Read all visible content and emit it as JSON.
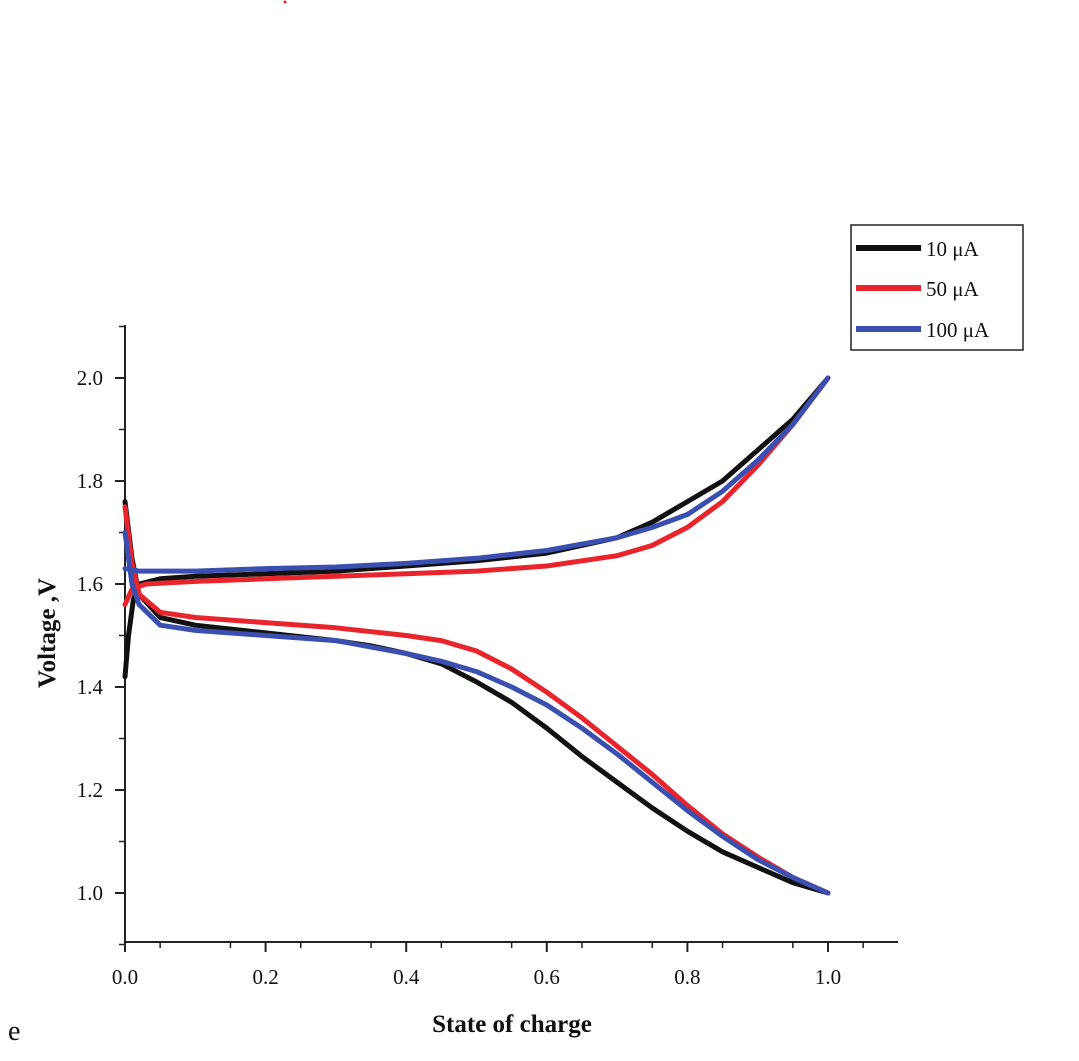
{
  "colors": {
    "s10": "#111111",
    "s50": "#e8242c",
    "s100": "#3b4fb0"
  },
  "panel_label": "e",
  "chart_data": {
    "type": "line",
    "title": "",
    "xlabel": "State of charge",
    "ylabel": "Voltage ,V",
    "xlim": [
      0.0,
      1.1
    ],
    "ylim": [
      0.9,
      2.1
    ],
    "xticks": [
      "0.0",
      "0.2",
      "0.4",
      "0.6",
      "0.8",
      "1.0"
    ],
    "xtick_values": [
      0.0,
      0.2,
      0.4,
      0.6,
      0.8,
      1.0
    ],
    "yticks": [
      "1.0",
      "1.2",
      "1.4",
      "1.6",
      "1.8",
      "2.0"
    ],
    "ytick_values": [
      1.0,
      1.2,
      1.4,
      1.6,
      1.8,
      2.0
    ],
    "legend_position": "top-right",
    "series": [
      {
        "name": "10 μA",
        "color_key": "s10",
        "charge": [
          [
            0.0,
            1.42
          ],
          [
            0.005,
            1.5
          ],
          [
            0.012,
            1.57
          ],
          [
            0.02,
            1.6
          ],
          [
            0.05,
            1.61
          ],
          [
            0.1,
            1.615
          ],
          [
            0.2,
            1.62
          ],
          [
            0.3,
            1.625
          ],
          [
            0.4,
            1.635
          ],
          [
            0.5,
            1.645
          ],
          [
            0.6,
            1.66
          ],
          [
            0.7,
            1.69
          ],
          [
            0.75,
            1.72
          ],
          [
            0.8,
            1.76
          ],
          [
            0.85,
            1.8
          ],
          [
            0.9,
            1.86
          ],
          [
            0.95,
            1.92
          ],
          [
            1.0,
            2.0
          ]
        ],
        "discharge": [
          [
            0.0,
            1.76
          ],
          [
            0.01,
            1.65
          ],
          [
            0.02,
            1.58
          ],
          [
            0.05,
            1.535
          ],
          [
            0.1,
            1.52
          ],
          [
            0.2,
            1.505
          ],
          [
            0.3,
            1.49
          ],
          [
            0.35,
            1.48
          ],
          [
            0.4,
            1.465
          ],
          [
            0.45,
            1.445
          ],
          [
            0.5,
            1.41
          ],
          [
            0.55,
            1.37
          ],
          [
            0.6,
            1.32
          ],
          [
            0.65,
            1.265
          ],
          [
            0.7,
            1.215
          ],
          [
            0.75,
            1.165
          ],
          [
            0.8,
            1.12
          ],
          [
            0.85,
            1.08
          ],
          [
            0.9,
            1.05
          ],
          [
            0.95,
            1.02
          ],
          [
            1.0,
            1.0
          ]
        ]
      },
      {
        "name": "50 μA",
        "color_key": "s50",
        "charge": [
          [
            0.0,
            1.56
          ],
          [
            0.01,
            1.59
          ],
          [
            0.03,
            1.6
          ],
          [
            0.1,
            1.605
          ],
          [
            0.2,
            1.61
          ],
          [
            0.3,
            1.615
          ],
          [
            0.4,
            1.62
          ],
          [
            0.5,
            1.625
          ],
          [
            0.6,
            1.635
          ],
          [
            0.7,
            1.655
          ],
          [
            0.75,
            1.675
          ],
          [
            0.8,
            1.71
          ],
          [
            0.85,
            1.76
          ],
          [
            0.9,
            1.83
          ],
          [
            0.95,
            1.91
          ],
          [
            1.0,
            2.0
          ]
        ],
        "discharge": [
          [
            0.0,
            1.75
          ],
          [
            0.01,
            1.64
          ],
          [
            0.02,
            1.58
          ],
          [
            0.05,
            1.545
          ],
          [
            0.1,
            1.535
          ],
          [
            0.2,
            1.525
          ],
          [
            0.3,
            1.515
          ],
          [
            0.4,
            1.5
          ],
          [
            0.45,
            1.49
          ],
          [
            0.5,
            1.47
          ],
          [
            0.55,
            1.435
          ],
          [
            0.6,
            1.39
          ],
          [
            0.65,
            1.34
          ],
          [
            0.7,
            1.285
          ],
          [
            0.75,
            1.23
          ],
          [
            0.8,
            1.17
          ],
          [
            0.85,
            1.115
          ],
          [
            0.9,
            1.07
          ],
          [
            0.95,
            1.03
          ],
          [
            1.0,
            1.0
          ]
        ]
      },
      {
        "name": "100 μA",
        "color_key": "s100",
        "charge": [
          [
            0.0,
            1.63
          ],
          [
            0.02,
            1.625
          ],
          [
            0.1,
            1.625
          ],
          [
            0.2,
            1.63
          ],
          [
            0.3,
            1.633
          ],
          [
            0.4,
            1.64
          ],
          [
            0.5,
            1.65
          ],
          [
            0.6,
            1.665
          ],
          [
            0.7,
            1.69
          ],
          [
            0.75,
            1.71
          ],
          [
            0.8,
            1.735
          ],
          [
            0.85,
            1.78
          ],
          [
            0.9,
            1.84
          ],
          [
            0.95,
            1.91
          ],
          [
            1.0,
            2.0
          ]
        ],
        "discharge": [
          [
            0.0,
            1.7
          ],
          [
            0.01,
            1.6
          ],
          [
            0.02,
            1.56
          ],
          [
            0.05,
            1.52
          ],
          [
            0.1,
            1.51
          ],
          [
            0.2,
            1.5
          ],
          [
            0.3,
            1.49
          ],
          [
            0.4,
            1.465
          ],
          [
            0.45,
            1.45
          ],
          [
            0.5,
            1.43
          ],
          [
            0.55,
            1.4
          ],
          [
            0.6,
            1.365
          ],
          [
            0.65,
            1.32
          ],
          [
            0.7,
            1.27
          ],
          [
            0.75,
            1.215
          ],
          [
            0.8,
            1.16
          ],
          [
            0.85,
            1.11
          ],
          [
            0.9,
            1.065
          ],
          [
            0.95,
            1.03
          ],
          [
            1.0,
            1.0
          ]
        ]
      }
    ]
  }
}
